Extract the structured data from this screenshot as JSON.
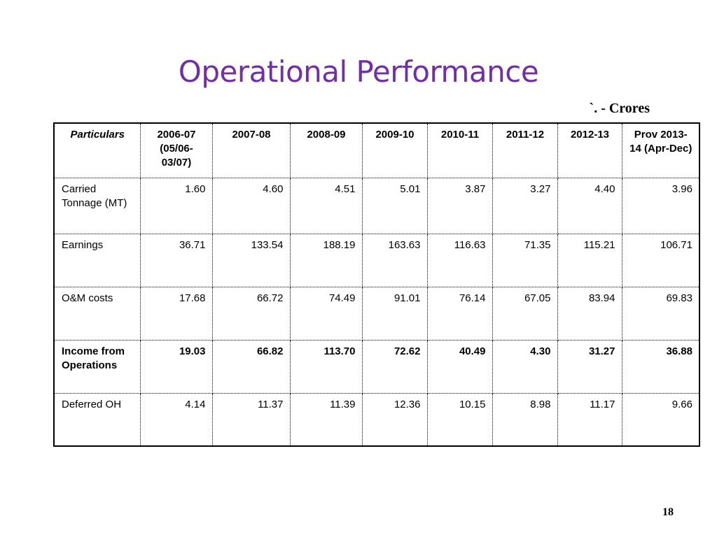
{
  "slide": {
    "title": "Operational Performance",
    "unit_label": "`. - Crores",
    "page_number": "18"
  },
  "table": {
    "headers": [
      "Particulars",
      "2006-07 (05/06-03/07)",
      "2007-08",
      "2008-09",
      "2009-10",
      "2010-11",
      "2011-12",
      "2012-13",
      "Prov 2013-14 (Apr-Dec)"
    ],
    "rows": [
      {
        "label": "Carried Tonnage (MT)",
        "bold": false,
        "values": [
          "1.60",
          "4.60",
          "4.51",
          "5.01",
          "3.87",
          "3.27",
          "4.40",
          "3.96"
        ]
      },
      {
        "label": "Earnings",
        "bold": false,
        "values": [
          "36.71",
          "133.54",
          "188.19",
          "163.63",
          "116.63",
          "71.35",
          "115.21",
          "106.71"
        ]
      },
      {
        "label": "O&M costs",
        "bold": false,
        "values": [
          "17.68",
          "66.72",
          "74.49",
          "91.01",
          "76.14",
          "67.05",
          "83.94",
          "69.83"
        ]
      },
      {
        "label": "Income from Operations",
        "bold": true,
        "values": [
          "19.03",
          "66.82",
          "113.70",
          "72.62",
          "40.49",
          "4.30",
          "31.27",
          "36.88"
        ]
      },
      {
        "label": "Deferred OH",
        "bold": false,
        "values": [
          "4.14",
          "11.37",
          "11.39",
          "12.36",
          "10.15",
          "8.98",
          "11.17",
          "9.66"
        ]
      }
    ]
  }
}
